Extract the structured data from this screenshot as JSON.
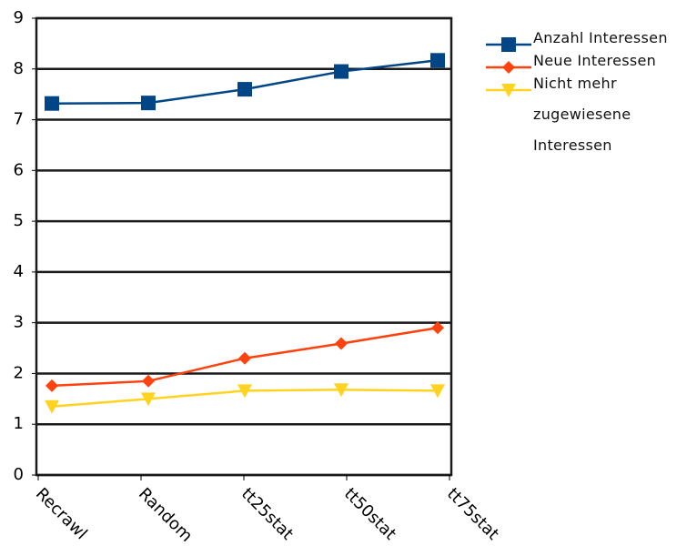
{
  "chart_data": {
    "type": "line",
    "categories": [
      "Recrawl",
      "Random",
      "tt25stat",
      "tt50stat",
      "tt75stat"
    ],
    "series": [
      {
        "name": "Anzahl Interessen",
        "color": "#004586",
        "marker": "square",
        "values": [
          7.32,
          7.33,
          7.6,
          7.95,
          8.17
        ]
      },
      {
        "name": "Neue Interessen",
        "color": "#ff420e",
        "marker": "diamond",
        "values": [
          1.76,
          1.85,
          2.3,
          2.59,
          2.9
        ]
      },
      {
        "name": "Nicht mehr zugewiesene Interessen",
        "color": "#ffd320",
        "marker": "triangle-down",
        "values": [
          1.35,
          1.5,
          1.66,
          1.68,
          1.66
        ]
      }
    ],
    "ylim": [
      0,
      9
    ],
    "yticks": [
      0,
      1,
      2,
      3,
      4,
      5,
      6,
      7,
      8,
      9
    ],
    "grid": true,
    "legend": "right"
  }
}
